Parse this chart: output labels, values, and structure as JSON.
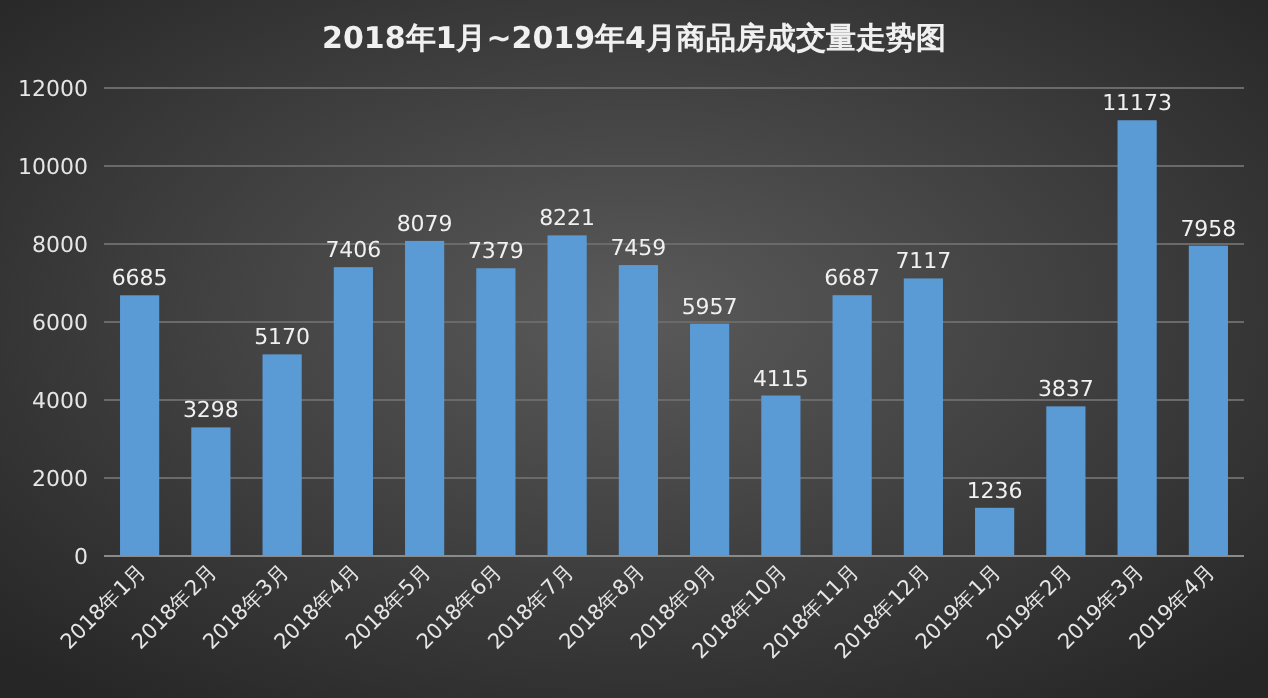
{
  "chart_data": {
    "type": "bar",
    "title": "2018年1月~2019年4月商品房成交量走势图",
    "categories": [
      "2018年1月",
      "2018年2月",
      "2018年3月",
      "2018年4月",
      "2018年5月",
      "2018年6月",
      "2018年7月",
      "2018年8月",
      "2018年9月",
      "2018年10月",
      "2018年11月",
      "2018年12月",
      "2019年1月",
      "2019年2月",
      "2019年3月",
      "2019年4月"
    ],
    "values": [
      6685,
      3298,
      5170,
      7406,
      8079,
      7379,
      8221,
      7459,
      5957,
      4115,
      6687,
      7117,
      1236,
      3837,
      11173,
      7958
    ],
    "color": "#5b9bd5",
    "ylim": [
      0,
      12000
    ],
    "yticks": [
      0,
      2000,
      4000,
      6000,
      8000,
      10000,
      12000
    ],
    "grid": "y",
    "data_labels": true
  }
}
